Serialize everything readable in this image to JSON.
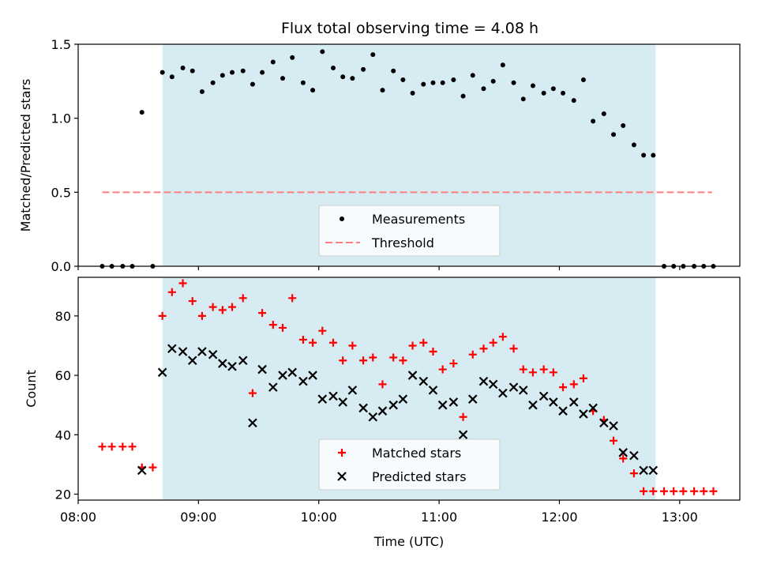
{
  "title": "Flux total observing time = 4.08 h",
  "colors": {
    "shade": "#add8e6",
    "measurement": "#000000",
    "threshold": "#ff7f7f",
    "matched": "#ff0000",
    "predicted": "#000000"
  },
  "chart_data": [
    {
      "type": "scatter",
      "ylabel": "Matched/Predicted stars",
      "xlim": [
        8.0,
        13.5
      ],
      "ylim": [
        0.0,
        1.5
      ],
      "yticks": [
        0.0,
        0.5,
        1.0,
        1.5
      ],
      "ytick_labels": [
        "0.0",
        "0.5",
        "1.0",
        "1.5"
      ],
      "shaded_region": [
        8.7,
        12.8
      ],
      "legend_placement": "lower-center",
      "threshold": {
        "name": "Threshold",
        "value": 0.5,
        "x_range": [
          8.2,
          13.27
        ]
      },
      "series": [
        {
          "name": "Measurements",
          "x": [
            8.2,
            8.28,
            8.37,
            8.45,
            8.53,
            8.62,
            8.7,
            8.78,
            8.87,
            8.95,
            9.03,
            9.12,
            9.2,
            9.28,
            9.37,
            9.45,
            9.53,
            9.62,
            9.7,
            9.78,
            9.87,
            9.95,
            10.03,
            10.12,
            10.2,
            10.28,
            10.37,
            10.45,
            10.53,
            10.62,
            10.7,
            10.78,
            10.87,
            10.95,
            11.03,
            11.12,
            11.2,
            11.28,
            11.37,
            11.45,
            11.53,
            11.62,
            11.7,
            11.78,
            11.87,
            11.95,
            12.03,
            12.12,
            12.2,
            12.28,
            12.37,
            12.45,
            12.53,
            12.62,
            12.7,
            12.78,
            12.87,
            12.95,
            13.03,
            13.12,
            13.2,
            13.28
          ],
          "y": [
            0.0,
            0.0,
            0.0,
            0.0,
            1.04,
            0.0,
            1.31,
            1.28,
            1.34,
            1.32,
            1.18,
            1.24,
            1.29,
            1.31,
            1.32,
            1.23,
            1.31,
            1.38,
            1.27,
            1.41,
            1.24,
            1.19,
            1.45,
            1.34,
            1.28,
            1.27,
            1.33,
            1.43,
            1.19,
            1.32,
            1.26,
            1.17,
            1.23,
            1.24,
            1.24,
            1.26,
            1.15,
            1.29,
            1.2,
            1.25,
            1.36,
            1.24,
            1.13,
            1.22,
            1.17,
            1.2,
            1.17,
            1.12,
            1.26,
            0.98,
            1.03,
            0.89,
            0.95,
            0.82,
            0.75,
            0.75,
            0.0,
            0.0,
            0.0,
            0.0,
            0.0,
            0.0
          ]
        }
      ]
    },
    {
      "type": "scatter",
      "xlabel": "Time (UTC)",
      "ylabel": "Count",
      "xlim": [
        8.0,
        13.5
      ],
      "ylim": [
        18,
        93
      ],
      "yticks": [
        20,
        40,
        60,
        80
      ],
      "ytick_labels": [
        "20",
        "40",
        "60",
        "80"
      ],
      "xticks": [
        8.0,
        9.0,
        10.0,
        11.0,
        12.0,
        13.0
      ],
      "xtick_labels": [
        "08:00",
        "09:00",
        "10:00",
        "11:00",
        "12:00",
        "13:00"
      ],
      "shaded_region": [
        8.7,
        12.8
      ],
      "legend_placement": "lower-center",
      "series": [
        {
          "name": "Matched stars",
          "x": [
            8.2,
            8.28,
            8.37,
            8.45,
            8.53,
            8.62,
            8.7,
            8.78,
            8.87,
            8.95,
            9.03,
            9.12,
            9.2,
            9.28,
            9.37,
            9.45,
            9.53,
            9.62,
            9.7,
            9.78,
            9.87,
            9.95,
            10.03,
            10.12,
            10.2,
            10.28,
            10.37,
            10.45,
            10.53,
            10.62,
            10.7,
            10.78,
            10.87,
            10.95,
            11.03,
            11.12,
            11.2,
            11.28,
            11.37,
            11.45,
            11.53,
            11.62,
            11.7,
            11.78,
            11.87,
            11.95,
            12.03,
            12.12,
            12.2,
            12.28,
            12.37,
            12.45,
            12.53,
            12.62,
            12.7,
            12.78,
            12.87,
            12.95,
            13.03,
            13.12,
            13.2,
            13.28
          ],
          "y": [
            36,
            36,
            36,
            36,
            29,
            29,
            80,
            88,
            91,
            85,
            80,
            83,
            82,
            83,
            86,
            54,
            81,
            77,
            76,
            86,
            72,
            71,
            75,
            71,
            65,
            70,
            65,
            66,
            57,
            66,
            65,
            70,
            71,
            68,
            62,
            64,
            46,
            67,
            69,
            71,
            73,
            69,
            62,
            61,
            62,
            61,
            56,
            57,
            59,
            48,
            45,
            38,
            32,
            27,
            21,
            21,
            21,
            21,
            21,
            21,
            21,
            21
          ]
        },
        {
          "name": "Predicted stars",
          "x": [
            8.53,
            8.7,
            8.78,
            8.87,
            8.95,
            9.03,
            9.12,
            9.2,
            9.28,
            9.37,
            9.45,
            9.53,
            9.62,
            9.7,
            9.78,
            9.87,
            9.95,
            10.03,
            10.12,
            10.2,
            10.28,
            10.37,
            10.45,
            10.53,
            10.62,
            10.7,
            10.78,
            10.87,
            10.95,
            11.03,
            11.12,
            11.2,
            11.28,
            11.37,
            11.45,
            11.53,
            11.62,
            11.7,
            11.78,
            11.87,
            11.95,
            12.03,
            12.12,
            12.2,
            12.28,
            12.37,
            12.45,
            12.53,
            12.62,
            12.7,
            12.78
          ],
          "y": [
            28,
            61,
            69,
            68,
            65,
            68,
            67,
            64,
            63,
            65,
            44,
            62,
            56,
            60,
            61,
            58,
            60,
            52,
            53,
            51,
            55,
            49,
            46,
            48,
            50,
            52,
            60,
            58,
            55,
            50,
            51,
            40,
            52,
            58,
            57,
            54,
            56,
            55,
            50,
            53,
            51,
            48,
            51,
            47,
            49,
            44,
            43,
            34,
            33,
            28,
            28
          ]
        }
      ]
    }
  ]
}
